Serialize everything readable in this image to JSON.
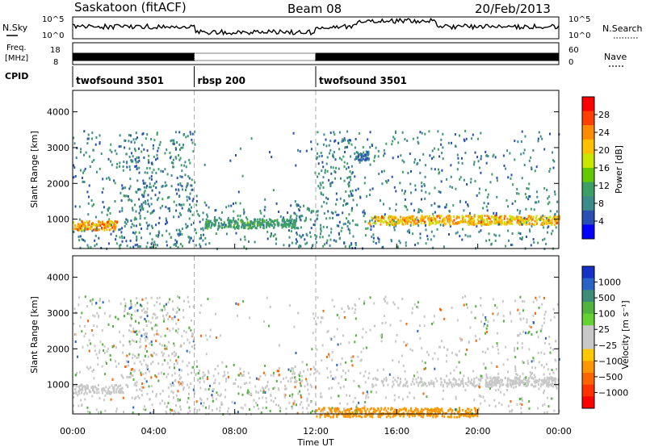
{
  "header": {
    "station": "Saskatoon (fitACF)",
    "beam": "Beam 08",
    "date": "20/Feb/2013"
  },
  "top_panel": {
    "nsky_label": "N.Sky",
    "nsky_ticks": [
      "10^5",
      "10^0"
    ],
    "nsearch_label": "N.Search",
    "nsearch_ticks": [
      "10^5",
      "10^0"
    ],
    "freq_label": "Freq.",
    "freq_unit": "[MHz]",
    "freq_ticks": [
      "18",
      "8"
    ],
    "nave_label": "Nave",
    "nave_ticks": [
      "60",
      "0"
    ],
    "cpid_label": "CPID",
    "cpid_segments": [
      {
        "label": "twofsound 3501",
        "start_h": 0,
        "end_h": 6
      },
      {
        "label": "rbsp 200",
        "start_h": 6,
        "end_h": 12
      },
      {
        "label": "twofsound 3501",
        "start_h": 12,
        "end_h": 24
      }
    ]
  },
  "chart_data": [
    {
      "type": "heatmap",
      "name_key": "power",
      "ylabel": "Slant Range [km]",
      "y_ticks": [
        1000,
        2000,
        3000,
        4000
      ],
      "ylim": [
        180,
        4600
      ],
      "xlim": [
        0,
        24
      ],
      "colorbar": {
        "label": "Power [dB]",
        "tick_labels": [
          "28",
          "24",
          "20",
          "16",
          "12",
          "8",
          "4"
        ],
        "colors": [
          "#ff0000",
          "#ff4000",
          "#ff8c00",
          "#ffc000",
          "#c8e600",
          "#64c800",
          "#3ca064",
          "#3c8c8c",
          "#2850b4",
          "#0000ff"
        ]
      },
      "features": [
        {
          "start_h": 0.0,
          "end_h": 2.2,
          "range_km": 850,
          "value_level": 0.9
        },
        {
          "start_h": 14.5,
          "end_h": 24.0,
          "range_km": 1000,
          "value_level": 0.85
        },
        {
          "start_h": 6.5,
          "end_h": 11.0,
          "range_km": 900,
          "value_level": 0.4
        },
        {
          "start_h": 13.8,
          "end_h": 14.6,
          "range_km": 2800,
          "value_level": 0.2
        }
      ]
    },
    {
      "type": "heatmap",
      "name_key": "velocity",
      "ylabel": "Slant Range [km]",
      "y_ticks": [
        1000,
        2000,
        3000,
        4000
      ],
      "ylim": [
        180,
        4600
      ],
      "xlim": [
        0,
        24
      ],
      "colorbar": {
        "label": "Velocity [m s⁻¹]",
        "tick_labels": [
          "1000",
          "500",
          "100",
          "25",
          "−25",
          "−100",
          "−500",
          "−1000"
        ],
        "colors": [
          "#1432c8",
          "#2864c8",
          "#3c8c78",
          "#50b43c",
          "#64d232",
          "#c8c8c8",
          "#c8c8c8",
          "#ffc800",
          "#ff9600",
          "#ff6400",
          "#ff3200",
          "#ff0000"
        ]
      },
      "features": [
        {
          "start_h": 0.0,
          "end_h": 2.5,
          "range_km": 900,
          "value": 0
        },
        {
          "start_h": 14.5,
          "end_h": 24.0,
          "range_km": 1100,
          "value": 0
        },
        {
          "start_h": 12.0,
          "end_h": 20.0,
          "range_km": 250,
          "value": -150
        }
      ]
    }
  ],
  "x_axis": {
    "label": "Time UT",
    "ticks": [
      "00:00",
      "04:00",
      "08:00",
      "12:00",
      "16:00",
      "20:00",
      "00:00"
    ],
    "tick_hours": [
      0,
      4,
      8,
      12,
      16,
      20,
      24
    ]
  }
}
